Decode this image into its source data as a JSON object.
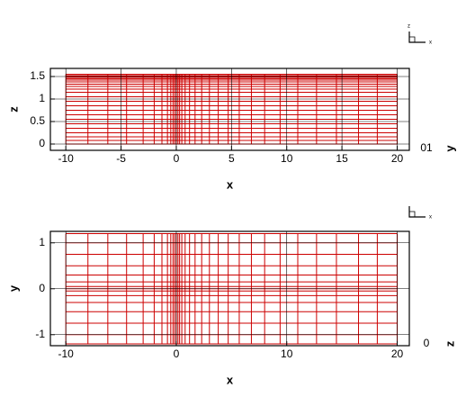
{
  "chart_data": [
    {
      "type": "mesh",
      "x_label": "x",
      "y_label": "z",
      "xlim": [
        -11.4,
        21.1
      ],
      "ylim": [
        -0.14,
        1.68
      ],
      "xticks": [
        -10,
        -5,
        0,
        5,
        10,
        15,
        20
      ],
      "yticks": [
        0,
        0.5,
        1,
        1.5
      ],
      "grid": true,
      "color": "#cc0000",
      "mesh_x": [
        -10,
        -8,
        -6.2,
        -4.5,
        -3,
        -2,
        -1.3,
        -0.8,
        -0.5,
        -0.3,
        -0.15,
        0,
        0.15,
        0.3,
        0.5,
        0.8,
        1.2,
        1.7,
        2.3,
        3,
        3.8,
        4.7,
        5.7,
        6.8,
        8,
        9.4,
        11,
        12.7,
        14.5,
        16.5,
        18.2,
        20
      ],
      "mesh_y": [
        0,
        0.08,
        0.16,
        0.25,
        0.35,
        0.45,
        0.55,
        0.65,
        0.75,
        0.85,
        0.95,
        1.05,
        1.15,
        1.22,
        1.28,
        1.33,
        1.38,
        1.42,
        1.45,
        1.48,
        1.5,
        1.52,
        1.55
      ],
      "side_labels": [
        "01",
        "y"
      ],
      "triad": [
        "z",
        "x"
      ]
    },
    {
      "type": "mesh",
      "x_label": "x",
      "y_label": "y",
      "xlim": [
        -11.4,
        21.1
      ],
      "ylim": [
        -1.24,
        1.25
      ],
      "xticks": [
        -10,
        0,
        10,
        20
      ],
      "yticks": [
        -1,
        0,
        1
      ],
      "grid": true,
      "color": "#cc0000",
      "mesh_x": [
        -10,
        -8,
        -6.2,
        -4.5,
        -3,
        -2,
        -1.3,
        -0.8,
        -0.5,
        -0.3,
        -0.15,
        0,
        0.15,
        0.3,
        0.5,
        0.8,
        1.2,
        1.7,
        2.3,
        3,
        3.8,
        4.7,
        5.7,
        6.8,
        8,
        9.4,
        11,
        12.7,
        14.5,
        16.5,
        18.2,
        20
      ],
      "mesh_y": [
        -1.2,
        -1,
        -0.75,
        -0.5,
        -0.3,
        -0.15,
        -0.05,
        0,
        0.05,
        0.15,
        0.3,
        0.5,
        0.75,
        1,
        1.2
      ],
      "side_labels": [
        "0",
        "z"
      ],
      "triad": [
        "x"
      ]
    }
  ]
}
